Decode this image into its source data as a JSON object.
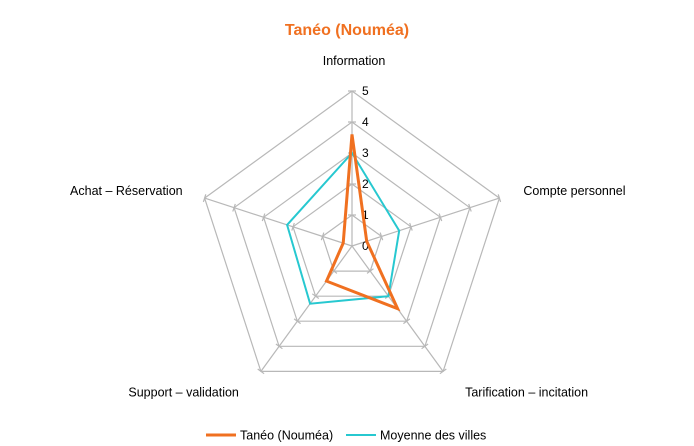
{
  "chart_data": {
    "type": "radar",
    "title": "Tanéo (Nouméa)",
    "categories": [
      "Information",
      "Compte personnel",
      "Tarification – incitation",
      "Support – validation",
      "Achat – Réservation"
    ],
    "rlim": [
      0,
      5
    ],
    "ticks": [
      "0",
      "1",
      "2",
      "3",
      "4",
      "5"
    ],
    "grid": true,
    "legend_position": "bottom",
    "series": [
      {
        "name": "Tanéo (Nouméa)",
        "values": [
          3.6,
          0.5,
          2.5,
          1.4,
          0.3
        ]
      },
      {
        "name": "Moyenne des villes",
        "values": [
          3.0,
          1.6,
          2.0,
          2.3,
          2.2
        ]
      }
    ],
    "colors": {
      "title": "#f07020",
      "series": [
        "#f07020",
        "#27c8d0"
      ],
      "grid": "#b8b8b8"
    }
  }
}
